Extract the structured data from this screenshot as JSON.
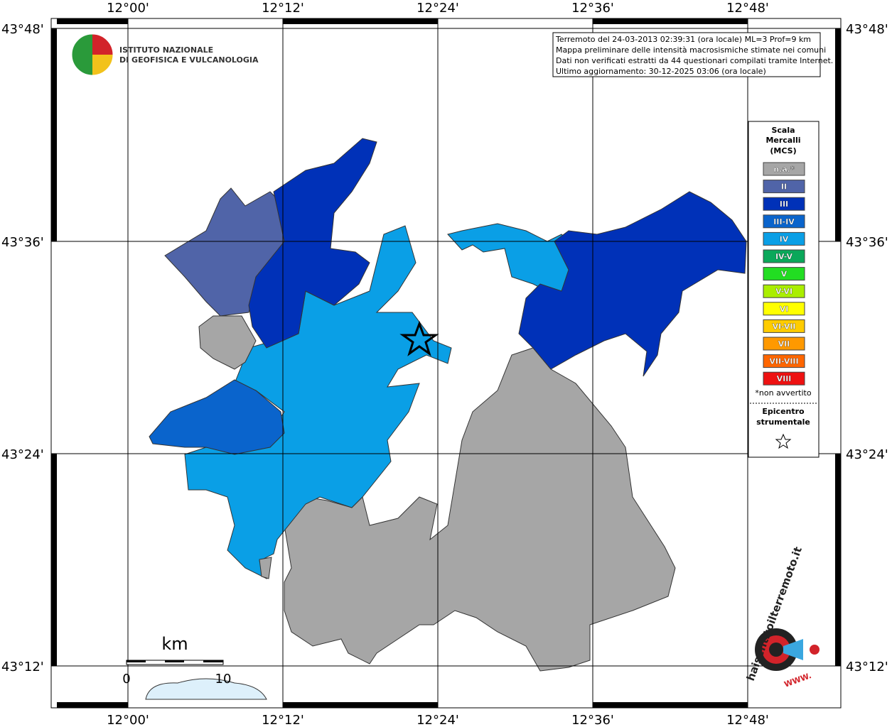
{
  "map": {
    "lon_ticks": [
      "12°00'",
      "12°12'",
      "12°24'",
      "12°36'",
      "12°48'"
    ],
    "lat_ticks": [
      "43°48'",
      "43°36'",
      "43°24'",
      "43°12'"
    ],
    "logo": {
      "line1": "ISTITUTO NAZIONALE",
      "line2": "DI GEOFISICA E VULCANOLOGIA"
    },
    "info": [
      "Terremoto del 24-03-2013 02:39:31 (ora locale) ML=3 Prof=9 km",
      "Mappa preliminare delle intensità macrosismiche stimate nei comuni",
      "Dati non verificati estratti da 44 questionari compilati tramite Internet.",
      "Ultimo aggiornamento: 30-12-2025 03:06 (ora locale)"
    ],
    "legend": {
      "title": [
        "Scala",
        "Mercalli",
        "(MCS)"
      ],
      "items": [
        {
          "label": "n.a.*",
          "color": "#a6a6a6"
        },
        {
          "label": "II",
          "color": "#5064a8"
        },
        {
          "label": "III",
          "color": "#0031b8"
        },
        {
          "label": "III-IV",
          "color": "#0a64cc"
        },
        {
          "label": "IV",
          "color": "#0a9fe6"
        },
        {
          "label": "IV-V",
          "color": "#0aa85a"
        },
        {
          "label": "V",
          "color": "#22dd22"
        },
        {
          "label": "V-VI",
          "color": "#aaee00"
        },
        {
          "label": "VI",
          "color": "#ffff00"
        },
        {
          "label": "VI-VII",
          "color": "#ffcc00"
        },
        {
          "label": "VII",
          "color": "#ff9900"
        },
        {
          "label": "VII-VIII",
          "color": "#ff6600"
        },
        {
          "label": "VIII",
          "color": "#ee1111"
        }
      ],
      "note": "*non avvertito",
      "epicenter": [
        "Epicentro",
        "strumentale"
      ]
    },
    "scale": {
      "unit": "km",
      "start": "0",
      "end": "10"
    },
    "site": {
      "name": "haisentitoilterremoto.it",
      "prefix": "WWW."
    }
  }
}
